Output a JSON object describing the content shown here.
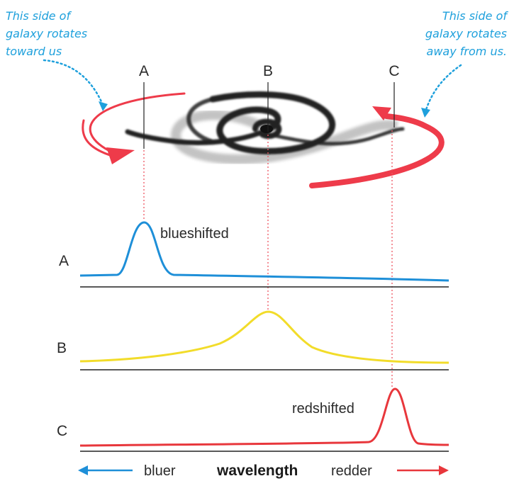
{
  "notes": {
    "left": [
      "This side of",
      "galaxy rotates",
      "toward us"
    ],
    "right": [
      "This side of",
      "galaxy rotates",
      "away from us."
    ]
  },
  "points": {
    "a": "A",
    "b": "B",
    "c": "C"
  },
  "spectra": [
    {
      "label": "A",
      "annotation": "blueshifted",
      "color": "#1e8fd8"
    },
    {
      "label": "B",
      "annotation": "",
      "color": "#f2dc2a"
    },
    {
      "label": "C",
      "annotation": "redshifted",
      "color": "#e8373c"
    }
  ],
  "axis": {
    "left": "bluer",
    "center": "wavelength",
    "right": "redder",
    "left_color": "#1e8fd8",
    "right_color": "#e8373c"
  },
  "colors": {
    "annotation": "#1ea0dc",
    "rotation_arrow": "#ee3b4a",
    "galaxy": "#222222",
    "guide_line": "#ee5560"
  }
}
